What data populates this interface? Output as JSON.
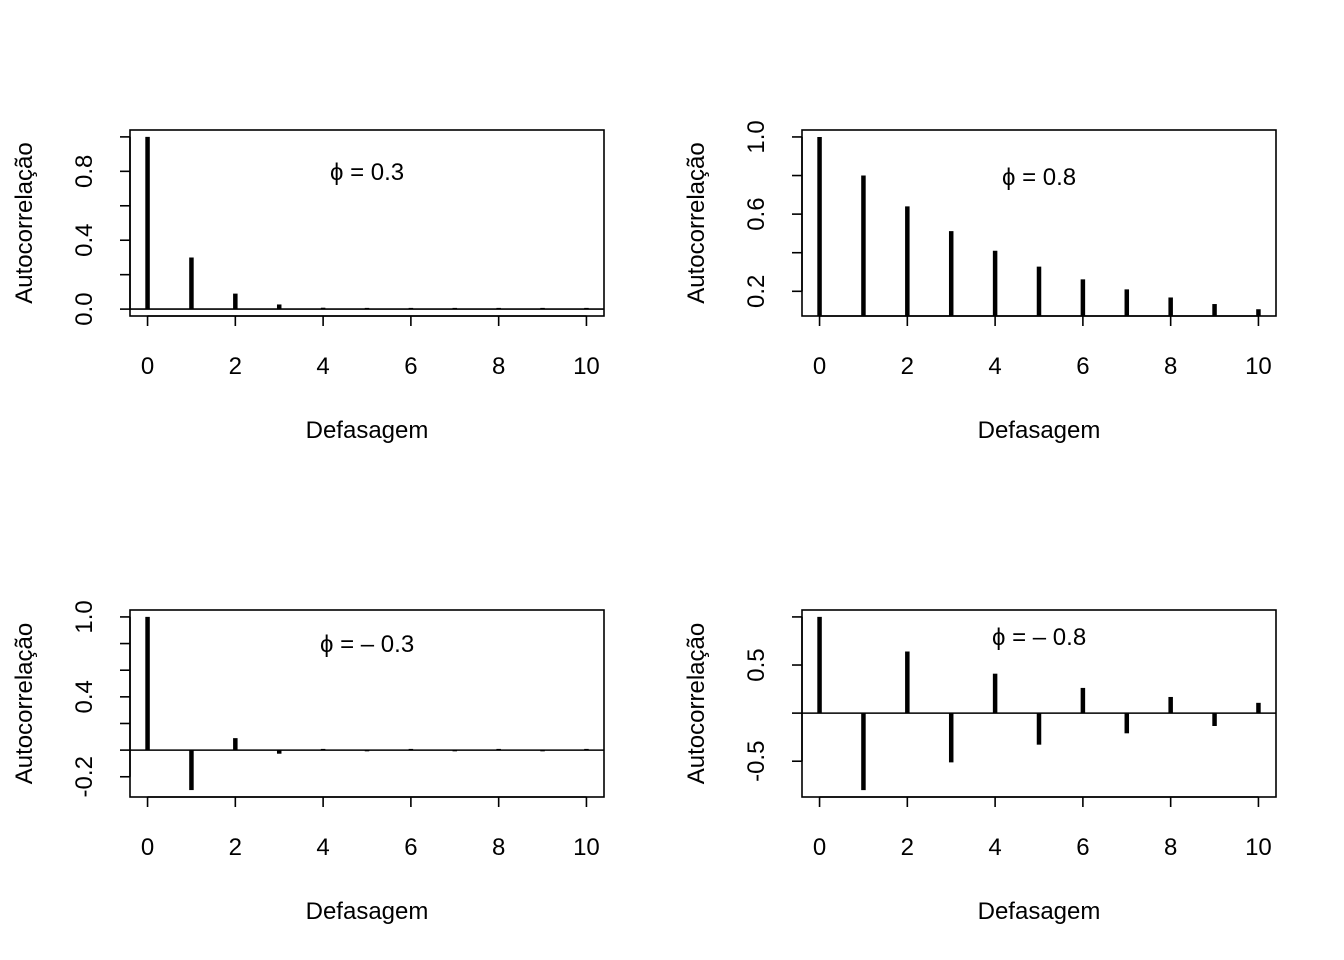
{
  "chart_data": [
    {
      "type": "bar",
      "annotation": "ϕ = 0.3",
      "xlabel": "Defasagem",
      "ylabel": "Autocorrelação",
      "x": [
        0,
        1,
        2,
        3,
        4,
        5,
        6,
        7,
        8,
        9,
        10
      ],
      "values": [
        1.0,
        0.3,
        0.09,
        0.027,
        0.0081,
        0.00243,
        0.00073,
        0.00022,
        6.56e-05,
        1.97e-05,
        5.9e-06
      ],
      "xlim": [
        -0.4,
        10.4
      ],
      "ylim": [
        -0.04,
        1.04
      ],
      "xticks": [
        0,
        2,
        4,
        6,
        8,
        10
      ],
      "xtick_labels": [
        "0",
        "2",
        "4",
        "6",
        "8",
        "10"
      ],
      "yticks": [
        0.0,
        0.2,
        0.4,
        0.6,
        0.8,
        1.0
      ],
      "ytick_labels": [
        "0.0",
        "",
        "0.4",
        "",
        "0.8",
        ""
      ],
      "zero_line": true
    },
    {
      "type": "bar",
      "annotation": "ϕ = 0.8",
      "xlabel": "Defasagem",
      "ylabel": "Autocorrelação",
      "x": [
        0,
        1,
        2,
        3,
        4,
        5,
        6,
        7,
        8,
        9,
        10
      ],
      "values": [
        1.0,
        0.8,
        0.64,
        0.512,
        0.41,
        0.328,
        0.262,
        0.21,
        0.168,
        0.134,
        0.107
      ],
      "xlim": [
        -0.4,
        10.4
      ],
      "ylim": [
        0.072,
        1.036
      ],
      "xticks": [
        0,
        2,
        4,
        6,
        8,
        10
      ],
      "xtick_labels": [
        "0",
        "2",
        "4",
        "6",
        "8",
        "10"
      ],
      "yticks": [
        0.2,
        0.4,
        0.6,
        0.8,
        1.0
      ],
      "ytick_labels": [
        "0.2",
        "",
        "0.6",
        "",
        "1.0"
      ],
      "zero_line": false
    },
    {
      "type": "bar",
      "annotation": "ϕ = – 0.3",
      "xlabel": "Defasagem",
      "ylabel": "Autocorrelação",
      "x": [
        0,
        1,
        2,
        3,
        4,
        5,
        6,
        7,
        8,
        9,
        10
      ],
      "values": [
        1.0,
        -0.3,
        0.09,
        -0.027,
        0.0081,
        -0.00243,
        0.00073,
        -0.00022,
        6.56e-05,
        -1.97e-05,
        5.9e-06
      ],
      "xlim": [
        -0.4,
        10.4
      ],
      "ylim": [
        -0.352,
        1.052
      ],
      "xticks": [
        0,
        2,
        4,
        6,
        8,
        10
      ],
      "xtick_labels": [
        "0",
        "2",
        "4",
        "6",
        "8",
        "10"
      ],
      "yticks": [
        -0.2,
        0.0,
        0.2,
        0.4,
        0.6,
        0.8,
        1.0
      ],
      "ytick_labels": [
        "-0.2",
        "",
        "",
        "0.4",
        "",
        "",
        "1.0"
      ],
      "zero_line": true
    },
    {
      "type": "bar",
      "annotation": "ϕ = – 0.8",
      "xlabel": "Defasagem",
      "ylabel": "Autocorrelação",
      "x": [
        0,
        1,
        2,
        3,
        4,
        5,
        6,
        7,
        8,
        9,
        10
      ],
      "values": [
        1.0,
        -0.8,
        0.64,
        -0.512,
        0.41,
        -0.328,
        0.262,
        -0.21,
        0.168,
        -0.134,
        0.107
      ],
      "xlim": [
        -0.4,
        10.4
      ],
      "ylim": [
        -0.872,
        1.072
      ],
      "xticks": [
        0,
        2,
        4,
        6,
        8,
        10
      ],
      "xtick_labels": [
        "0",
        "2",
        "4",
        "6",
        "8",
        "10"
      ],
      "yticks": [
        -0.5,
        0.0,
        0.5,
        1.0
      ],
      "ytick_labels": [
        "-0.5",
        "",
        "0.5",
        ""
      ],
      "zero_line": true
    }
  ]
}
